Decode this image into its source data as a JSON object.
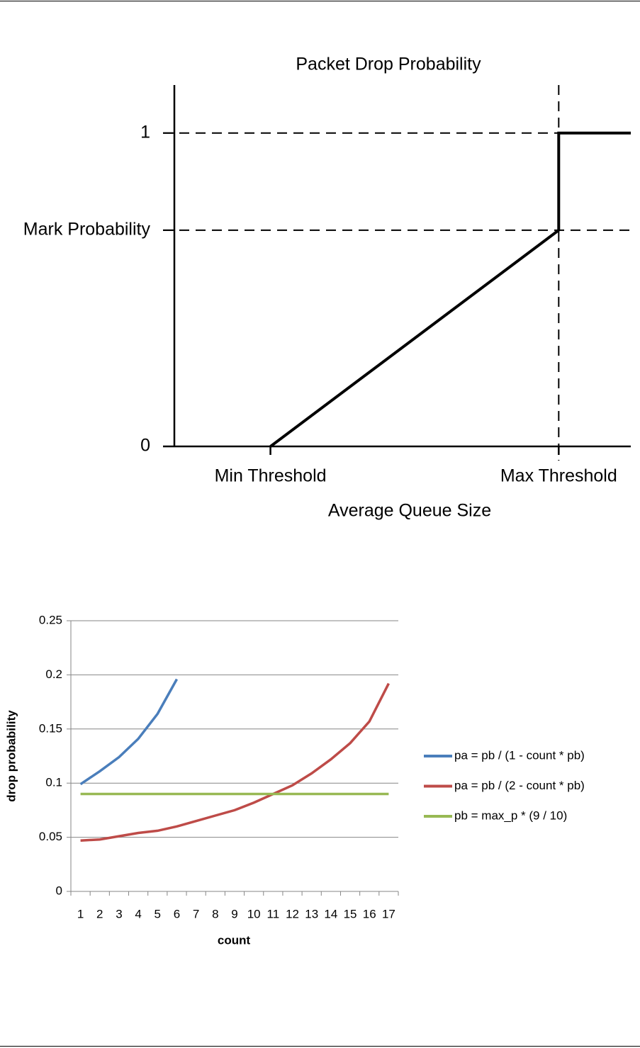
{
  "chart_data": [
    {
      "type": "line",
      "title": "Packet Drop Probability",
      "x_label": "Average Queue Size",
      "x": [
        1,
        4,
        4,
        4.75
      ],
      "series": [
        {
          "color": "#000000",
          "values": [
            0,
            0.69,
            1,
            1
          ]
        }
      ],
      "xlim": [
        0,
        4.75
      ],
      "xticks": [
        {
          "value": 1,
          "label": "Min Threshold"
        },
        {
          "value": 4,
          "label": "Max Threshold"
        }
      ],
      "ylim": [
        0,
        1.16
      ],
      "yticks": [
        0,
        {
          "value": 0.69,
          "label": "Mark Probability"
        },
        1
      ],
      "reference_lines": {
        "y": [
          1,
          0.69
        ],
        "x": [
          4
        ]
      },
      "grid": false
    },
    {
      "type": "line",
      "x_label": "count",
      "y_label": "drop probability",
      "categories": [
        "1",
        "2",
        "3",
        "4",
        "5",
        "6",
        "7",
        "8",
        "9",
        "10",
        "11",
        "12",
        "13",
        "14",
        "15",
        "16",
        "17"
      ],
      "series": [
        {
          "name": "pa = pb / (1 - count * pb)",
          "color": "#4a7ebb",
          "values": [
            0.099,
            0.111,
            0.124,
            0.141,
            0.164,
            0.196,
            null,
            null,
            null,
            null,
            null,
            null,
            null,
            null,
            null,
            null,
            null
          ]
        },
        {
          "name": "pa = pb / (2 - count * pb)",
          "color": "#be4b48",
          "values": [
            0.047,
            0.048,
            0.051,
            0.054,
            0.056,
            0.06,
            0.065,
            0.07,
            0.075,
            0.082,
            0.09,
            0.098,
            0.109,
            0.122,
            0.137,
            0.157,
            0.192
          ]
        },
        {
          "name": "pb = max_p * (9 / 10)",
          "color": "#98b954",
          "values": [
            0.09,
            0.09,
            0.09,
            0.09,
            0.09,
            0.09,
            0.09,
            0.09,
            0.09,
            0.09,
            0.09,
            0.09,
            0.09,
            0.09,
            0.09,
            0.09,
            0.09
          ]
        }
      ],
      "ylim": [
        0,
        0.25
      ],
      "yticks": [
        0,
        0.05,
        0.1,
        0.15,
        0.2,
        0.25
      ],
      "grid": true,
      "legend": "right"
    }
  ]
}
